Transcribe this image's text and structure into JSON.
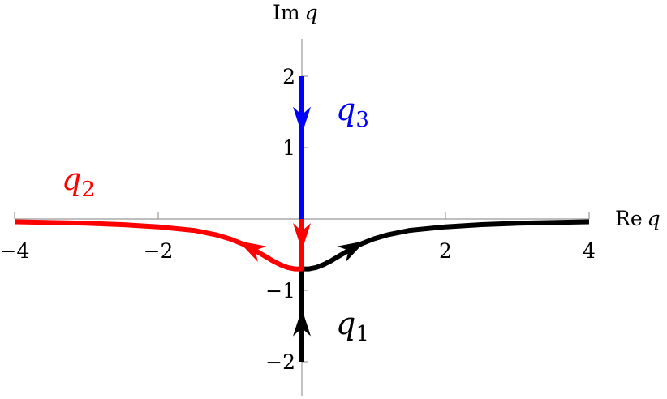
{
  "chart_data": {
    "type": "line",
    "xaxis": {
      "label": "Re",
      "var": "q",
      "ticks": [
        -4,
        -2,
        2,
        4
      ],
      "tick_labels": [
        "−4",
        "−2",
        "2",
        "4"
      ],
      "range": [
        -4,
        4
      ]
    },
    "yaxis": {
      "label": "Im",
      "var": "q",
      "ticks": [
        -2,
        -1,
        1,
        2
      ],
      "tick_labels": [
        "−2",
        "−1",
        "1",
        "2"
      ],
      "range": [
        -2.2,
        2.4
      ]
    },
    "grid": false,
    "series": [
      {
        "name": "q1",
        "label_main": "q",
        "label_sub": "1",
        "color": "#000000",
        "points": [
          [
            0,
            -2.0
          ],
          [
            0,
            -1.5
          ],
          [
            0,
            -1.0
          ],
          [
            0,
            -0.7
          ],
          [
            0.1,
            -0.7
          ],
          [
            0.2,
            -0.68
          ],
          [
            0.3,
            -0.64
          ],
          [
            0.4,
            -0.59
          ],
          [
            0.5,
            -0.53
          ],
          [
            0.6,
            -0.47
          ],
          [
            0.7,
            -0.41
          ],
          [
            0.8,
            -0.36
          ],
          [
            1.0,
            -0.28
          ],
          [
            1.2,
            -0.22
          ],
          [
            1.5,
            -0.16
          ],
          [
            2.0,
            -0.11
          ],
          [
            2.5,
            -0.08
          ],
          [
            3.0,
            -0.06
          ],
          [
            3.5,
            -0.05
          ],
          [
            4.0,
            -0.04
          ]
        ],
        "arrows": [
          {
            "at": [
              0,
              -1.45
            ],
            "dir": [
              0,
              1
            ]
          },
          {
            "at": [
              0.72,
              -0.4
            ],
            "dir": [
              1,
              0.55
            ]
          }
        ]
      },
      {
        "name": "q2",
        "label_main": "q",
        "label_sub": "2",
        "color": "#ff0000",
        "points": [
          [
            -4.0,
            -0.04
          ],
          [
            -3.5,
            -0.05
          ],
          [
            -3.0,
            -0.06
          ],
          [
            -2.5,
            -0.08
          ],
          [
            -2.0,
            -0.11
          ],
          [
            -1.5,
            -0.16
          ],
          [
            -1.2,
            -0.22
          ],
          [
            -1.0,
            -0.28
          ],
          [
            -0.8,
            -0.36
          ],
          [
            -0.7,
            -0.41
          ],
          [
            -0.6,
            -0.47
          ],
          [
            -0.5,
            -0.53
          ],
          [
            -0.4,
            -0.59
          ],
          [
            -0.3,
            -0.64
          ],
          [
            -0.2,
            -0.68
          ],
          [
            -0.1,
            -0.7
          ],
          [
            0,
            -0.7
          ],
          [
            0,
            -0.35
          ],
          [
            0,
            0.0
          ]
        ],
        "arrows": [
          {
            "at": [
              0,
              -0.25
            ],
            "dir": [
              0,
              -1
            ]
          },
          {
            "at": [
              -0.72,
              -0.4
            ],
            "dir": [
              -1,
              0.55
            ]
          }
        ]
      },
      {
        "name": "q3",
        "label_main": "q",
        "label_sub": "3",
        "color": "#0000ff",
        "points": [
          [
            0,
            2.0
          ],
          [
            0,
            1.5
          ],
          [
            0,
            1.0
          ],
          [
            0,
            0.5
          ],
          [
            0,
            0.0
          ]
        ],
        "arrows": [
          {
            "at": [
              0,
              1.38
            ],
            "dir": [
              0,
              -1
            ]
          }
        ]
      }
    ]
  }
}
